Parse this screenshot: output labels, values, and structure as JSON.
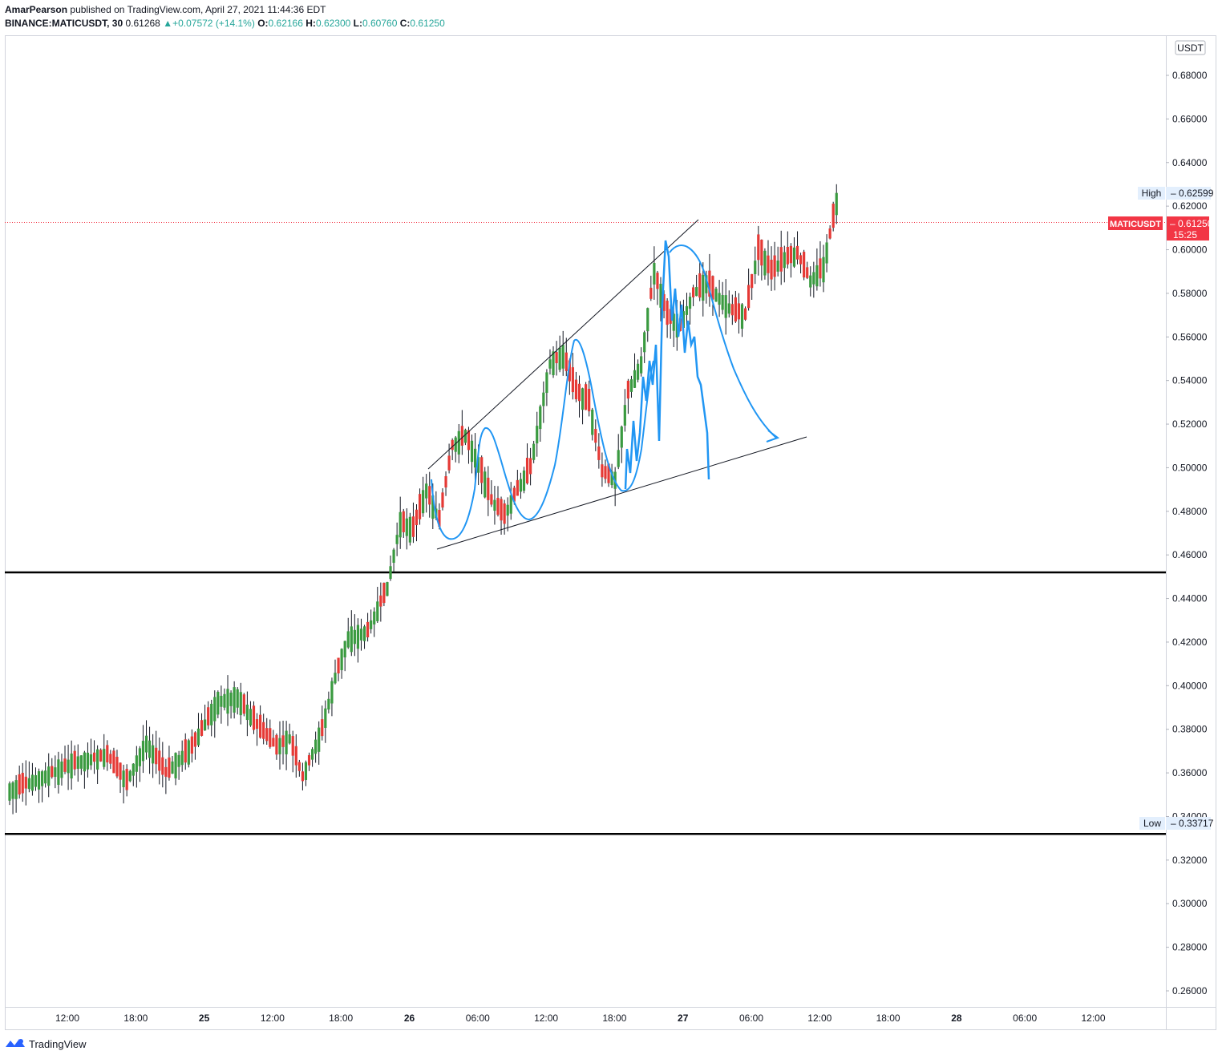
{
  "header": {
    "author": "AmarPearson",
    "published_text": "published on TradingView.com, April 27, 2021 11:44:36 EDT",
    "symbol_line": "BINANCE:MATICUSDT, 30",
    "last": "0.61268",
    "change_arrow": "▲",
    "change": "+0.07572 (+14.1%)",
    "o_label": "O:",
    "o_value": "0.62166",
    "h_label": "H:",
    "h_value": "0.62300",
    "l_label": "L:",
    "l_value": "0.60760",
    "c_label": "C:",
    "c_value": "0.61250"
  },
  "footer": {
    "brand": "TradingView",
    "logo_icon": "tradingview-logo-icon"
  },
  "colors": {
    "up": "#26a69a",
    "up_fill": "#3a9a40",
    "down": "#e53935",
    "drawing": "#2196f3",
    "price_tag": "#f23645"
  },
  "chart_data": {
    "type": "candlestick",
    "symbol": "BINANCE:MATICUSDT",
    "interval": "30",
    "currency_label": "USDT",
    "ylim": [
      0.25,
      0.695
    ],
    "y_ticks": [
      "0.68000",
      "0.66000",
      "0.64000",
      "0.62000",
      "0.60000",
      "0.58000",
      "0.56000",
      "0.54000",
      "0.52000",
      "0.50000",
      "0.48000",
      "0.46000",
      "0.44000",
      "0.42000",
      "0.40000",
      "0.38000",
      "0.36000",
      "0.34000",
      "0.32000",
      "0.30000",
      "0.28000",
      "0.26000"
    ],
    "x_ticks": [
      "12:00",
      "18:00",
      "25",
      "12:00",
      "18:00",
      "26",
      "06:00",
      "12:00",
      "18:00",
      "27",
      "06:00",
      "12:00",
      "18:00",
      "28",
      "06:00",
      "12:00"
    ],
    "high_label": "High",
    "high_value": "0.62599",
    "low_label": "Low",
    "low_value": "0.33717",
    "current_label": "MATICUSDT",
    "current_value": "0.61250",
    "countdown": "15:25",
    "current_price": 0.6125,
    "horizontal_levels": [
      0.452,
      0.332
    ],
    "channel": {
      "upper": [
        [
          0.5,
          0.6137
        ],
        [
          0.5625,
          0.6271
        ],
        [
          0.6,
          0.64
        ],
        [
          0.65,
          0.66
        ]
      ],
      "lower": [
        [
          0.0,
          0.339
        ],
        [
          0.5,
          0.488
        ]
      ]
    },
    "series": []
  }
}
